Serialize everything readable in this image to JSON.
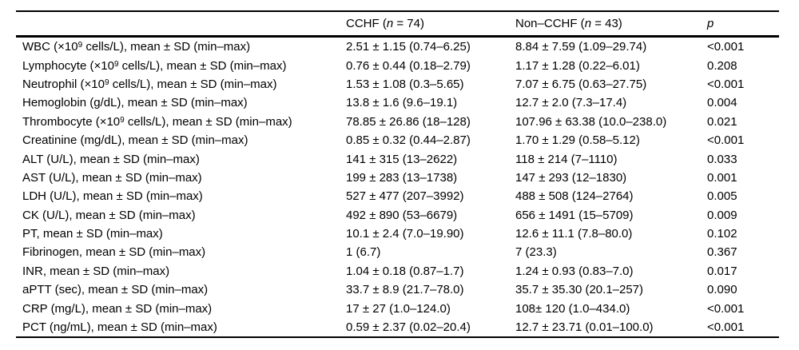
{
  "header": {
    "parameter": "",
    "cchf": {
      "pre": "CCHF (",
      "n": "n",
      "post": " = 74)"
    },
    "non_cchf": {
      "pre": "Non–CCHF (",
      "n": "n",
      "post": " = 43)"
    },
    "p": "p"
  },
  "rows": [
    {
      "label_pre": "WBC (×10",
      "label_sup": "9",
      "label_post": " cells/L), mean ± SD (min–max)",
      "cchf": "2.51 ± 1.15 (0.74–6.25)",
      "non_cchf": "8.84 ± 7.59 (1.09–29.74)",
      "p": "<0.001"
    },
    {
      "label_pre": "Lymphocyte (×10",
      "label_sup": "9",
      "label_post": " cells/L), mean ± SD (min–max)",
      "cchf": "0.76 ± 0.44 (0.18–2.79)",
      "non_cchf": "1.17 ± 1.28 (0.22–6.01)",
      "p": "0.208"
    },
    {
      "label_pre": "Neutrophil (×10",
      "label_sup": "9",
      "label_post": " cells/L), mean ± SD (min–max)",
      "cchf": "1.53 ± 1.08 (0.3–5.65)",
      "non_cchf": "7.07 ± 6.75 (0.63–27.75)",
      "p": "<0.001"
    },
    {
      "label_pre": "Hemoglobin (g/dL), mean ± SD (min–max)",
      "label_sup": "",
      "label_post": "",
      "cchf": "13.8 ± 1.6 (9.6–19.1)",
      "non_cchf": "12.7 ± 2.0 (7.3–17.4)",
      "p": "0.004"
    },
    {
      "label_pre": "Thrombocyte (×10",
      "label_sup": "9",
      "label_post": " cells/L), mean ± SD (min–max)",
      "cchf": "78.85 ± 26.86 (18–128)",
      "non_cchf": "107.96 ± 63.38 (10.0–238.0)",
      "p": "0.021"
    },
    {
      "label_pre": "Creatinine (mg/dL), mean ± SD (min–max)",
      "label_sup": "",
      "label_post": "",
      "cchf": "0.85 ± 0.32 (0.44–2.87)",
      "non_cchf": "1.70 ± 1.29 (0.58–5.12)",
      "p": "<0.001"
    },
    {
      "label_pre": "ALT (U/L), mean ± SD (min–max)",
      "label_sup": "",
      "label_post": "",
      "cchf": "141 ± 315 (13–2622)",
      "non_cchf": "118 ± 214 (7–1110)",
      "p": "0.033"
    },
    {
      "label_pre": "AST (U/L), mean ± SD (min–max)",
      "label_sup": "",
      "label_post": "",
      "cchf": "199 ± 283 (13–1738)",
      "non_cchf": "147 ± 293 (12–1830)",
      "p": "0.001"
    },
    {
      "label_pre": "LDH (U/L), mean ± SD (min–max)",
      "label_sup": "",
      "label_post": "",
      "cchf": "527 ± 477 (207–3992)",
      "non_cchf": "488 ± 508 (124–2764)",
      "p": "0.005"
    },
    {
      "label_pre": "CK (U/L), mean ± SD (min–max)",
      "label_sup": "",
      "label_post": "",
      "cchf": "492 ± 890 (53–6679)",
      "non_cchf": "656 ± 1491 (15–5709)",
      "p": "0.009"
    },
    {
      "label_pre": "PT, mean ± SD (min–max)",
      "label_sup": "",
      "label_post": "",
      "cchf": "10.1 ± 2.4 (7.0–19.90)",
      "non_cchf": "12.6 ± 11.1 (7.8–80.0)",
      "p": "0.102"
    },
    {
      "label_pre": "Fibrinogen, mean ± SD (min–max)",
      "label_sup": "",
      "label_post": "",
      "cchf": "1 (6.7)",
      "non_cchf": "7 (23.3)",
      "p": "0.367"
    },
    {
      "label_pre": "INR, mean ± SD (min–max)",
      "label_sup": "",
      "label_post": "",
      "cchf": "1.04 ± 0.18 (0.87–1.7)",
      "non_cchf": "1.24 ± 0.93 (0.83–7.0)",
      "p": "0.017"
    },
    {
      "label_pre": "aPTT (sec), mean ± SD (min–max)",
      "label_sup": "",
      "label_post": "",
      "cchf": "33.7 ± 8.9 (21.7–78.0)",
      "non_cchf": "35.7 ± 35.30 (20.1–257)",
      "p": "0.090"
    },
    {
      "label_pre": "CRP (mg/L), mean ± SD (min–max)",
      "label_sup": "",
      "label_post": "",
      "cchf": "17 ± 27 (1.0–124.0)",
      "non_cchf": "108± 120 (1.0–434.0)",
      "p": "<0.001"
    },
    {
      "label_pre": "PCT (ng/mL), mean ± SD (min–max)",
      "label_sup": "",
      "label_post": "",
      "cchf": "0.59 ± 2.37 (0.02–20.4)",
      "non_cchf": "12.7 ± 23.71 (0.01–100.0)",
      "p": "<0.001"
    }
  ]
}
